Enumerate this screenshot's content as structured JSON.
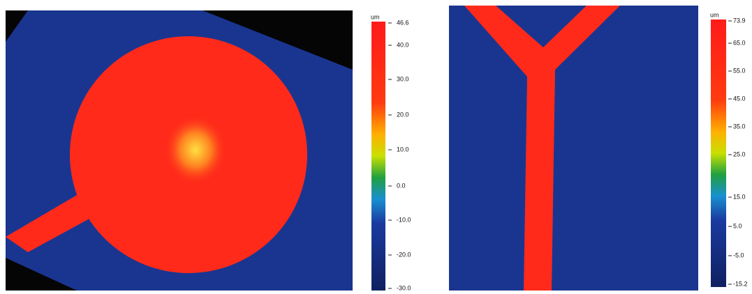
{
  "panels": [
    {
      "unit": "um",
      "ticks": [
        "46.6",
        "40.0",
        "30.0",
        "20.0",
        "10.0",
        "0.0",
        "-10.0",
        "-20.0",
        "-30.0"
      ]
    },
    {
      "unit": "um",
      "ticks": [
        "73.9",
        "65.0",
        "55.0",
        "45.0",
        "35.0",
        "25.0",
        "15.0",
        "5.0",
        "-5.0",
        "-15.2"
      ]
    }
  ]
}
